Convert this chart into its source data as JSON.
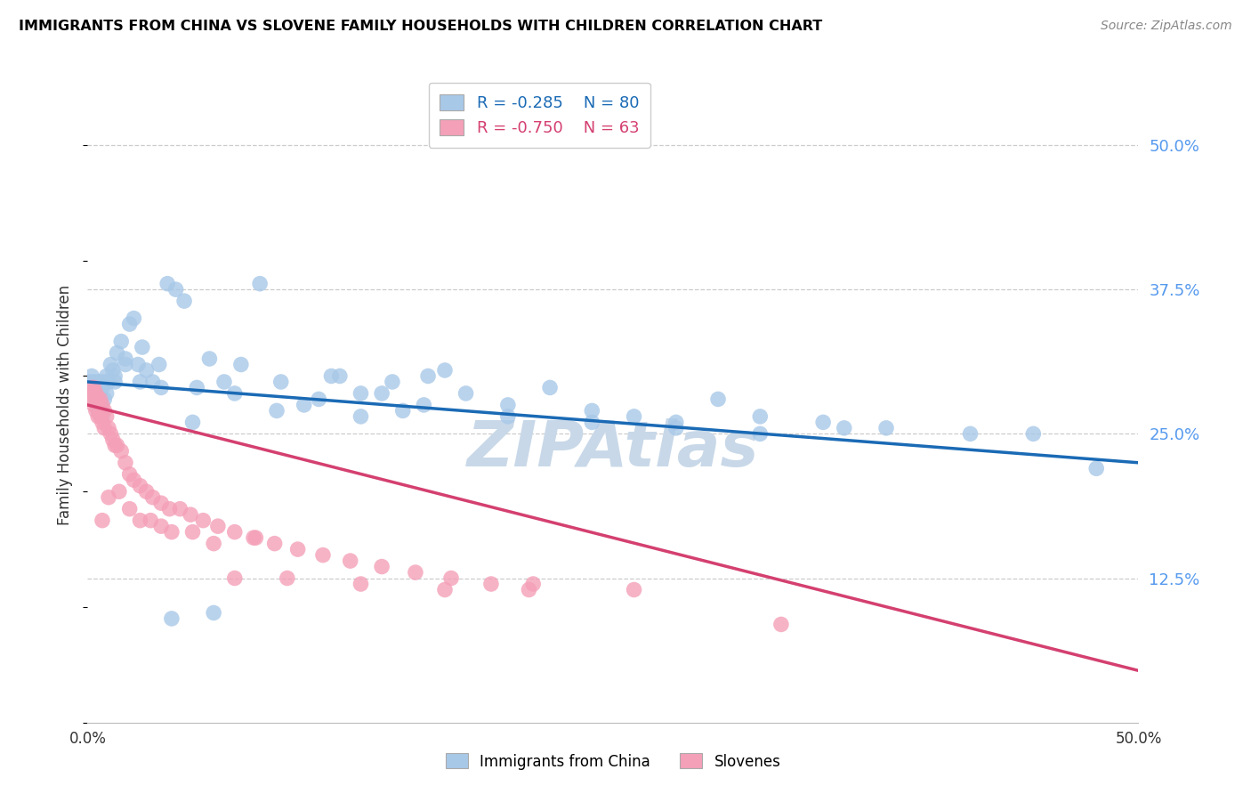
{
  "title": "IMMIGRANTS FROM CHINA VS SLOVENE FAMILY HOUSEHOLDS WITH CHILDREN CORRELATION CHART",
  "source": "Source: ZipAtlas.com",
  "ylabel": "Family Households with Children",
  "legend_label1": "Immigrants from China",
  "legend_label2": "Slovenes",
  "r1_text": "R = -0.285",
  "n1_text": "N = 80",
  "r2_text": "R = -0.750",
  "n2_text": "N = 63",
  "color_blue": "#a8c8e8",
  "color_pink": "#f4a0b8",
  "line_color_blue": "#1a6ab5",
  "line_color_pink": "#d44070",
  "watermark_color": "#c8d8e8",
  "xlim": [
    0.0,
    0.5
  ],
  "ylim": [
    0.0,
    0.55
  ],
  "yticks": [
    0.125,
    0.25,
    0.375,
    0.5
  ],
  "ytick_labels": [
    "12.5%",
    "25.0%",
    "37.5%",
    "50.0%"
  ],
  "blue_x": [
    0.001,
    0.002,
    0.003,
    0.003,
    0.004,
    0.004,
    0.005,
    0.005,
    0.006,
    0.006,
    0.007,
    0.007,
    0.008,
    0.008,
    0.009,
    0.01,
    0.011,
    0.012,
    0.013,
    0.014,
    0.016,
    0.018,
    0.02,
    0.022,
    0.024,
    0.026,
    0.028,
    0.031,
    0.034,
    0.038,
    0.042,
    0.046,
    0.052,
    0.058,
    0.065,
    0.073,
    0.082,
    0.092,
    0.103,
    0.116,
    0.13,
    0.145,
    0.162,
    0.18,
    0.2,
    0.22,
    0.17,
    0.15,
    0.13,
    0.11,
    0.09,
    0.07,
    0.05,
    0.035,
    0.025,
    0.018,
    0.013,
    0.009,
    0.006,
    0.004,
    0.24,
    0.26,
    0.28,
    0.3,
    0.32,
    0.35,
    0.38,
    0.42,
    0.45,
    0.48,
    0.12,
    0.14,
    0.16,
    0.2,
    0.24,
    0.28,
    0.32,
    0.36,
    0.06,
    0.04
  ],
  "blue_y": [
    0.295,
    0.3,
    0.285,
    0.295,
    0.28,
    0.29,
    0.27,
    0.295,
    0.28,
    0.295,
    0.265,
    0.29,
    0.28,
    0.295,
    0.3,
    0.295,
    0.31,
    0.305,
    0.295,
    0.32,
    0.33,
    0.315,
    0.345,
    0.35,
    0.31,
    0.325,
    0.305,
    0.295,
    0.31,
    0.38,
    0.375,
    0.365,
    0.29,
    0.315,
    0.295,
    0.31,
    0.38,
    0.295,
    0.275,
    0.3,
    0.285,
    0.295,
    0.3,
    0.285,
    0.275,
    0.29,
    0.305,
    0.27,
    0.265,
    0.28,
    0.27,
    0.285,
    0.26,
    0.29,
    0.295,
    0.31,
    0.3,
    0.285,
    0.275,
    0.285,
    0.27,
    0.265,
    0.26,
    0.28,
    0.265,
    0.26,
    0.255,
    0.25,
    0.25,
    0.22,
    0.3,
    0.285,
    0.275,
    0.265,
    0.26,
    0.255,
    0.25,
    0.255,
    0.095,
    0.09
  ],
  "pink_x": [
    0.001,
    0.002,
    0.002,
    0.003,
    0.003,
    0.004,
    0.004,
    0.005,
    0.005,
    0.006,
    0.006,
    0.007,
    0.007,
    0.008,
    0.008,
    0.009,
    0.01,
    0.011,
    0.012,
    0.013,
    0.014,
    0.016,
    0.018,
    0.02,
    0.022,
    0.025,
    0.028,
    0.031,
    0.035,
    0.039,
    0.044,
    0.049,
    0.055,
    0.062,
    0.07,
    0.079,
    0.089,
    0.1,
    0.112,
    0.125,
    0.14,
    0.156,
    0.173,
    0.192,
    0.212,
    0.08,
    0.06,
    0.04,
    0.03,
    0.02,
    0.015,
    0.01,
    0.007,
    0.025,
    0.035,
    0.05,
    0.07,
    0.095,
    0.13,
    0.17,
    0.21,
    0.26,
    0.33
  ],
  "pink_y": [
    0.285,
    0.29,
    0.28,
    0.29,
    0.275,
    0.285,
    0.27,
    0.28,
    0.265,
    0.28,
    0.265,
    0.275,
    0.26,
    0.27,
    0.255,
    0.265,
    0.255,
    0.25,
    0.245,
    0.24,
    0.24,
    0.235,
    0.225,
    0.215,
    0.21,
    0.205,
    0.2,
    0.195,
    0.19,
    0.185,
    0.185,
    0.18,
    0.175,
    0.17,
    0.165,
    0.16,
    0.155,
    0.15,
    0.145,
    0.14,
    0.135,
    0.13,
    0.125,
    0.12,
    0.12,
    0.16,
    0.155,
    0.165,
    0.175,
    0.185,
    0.2,
    0.195,
    0.175,
    0.175,
    0.17,
    0.165,
    0.125,
    0.125,
    0.12,
    0.115,
    0.115,
    0.115,
    0.085
  ]
}
